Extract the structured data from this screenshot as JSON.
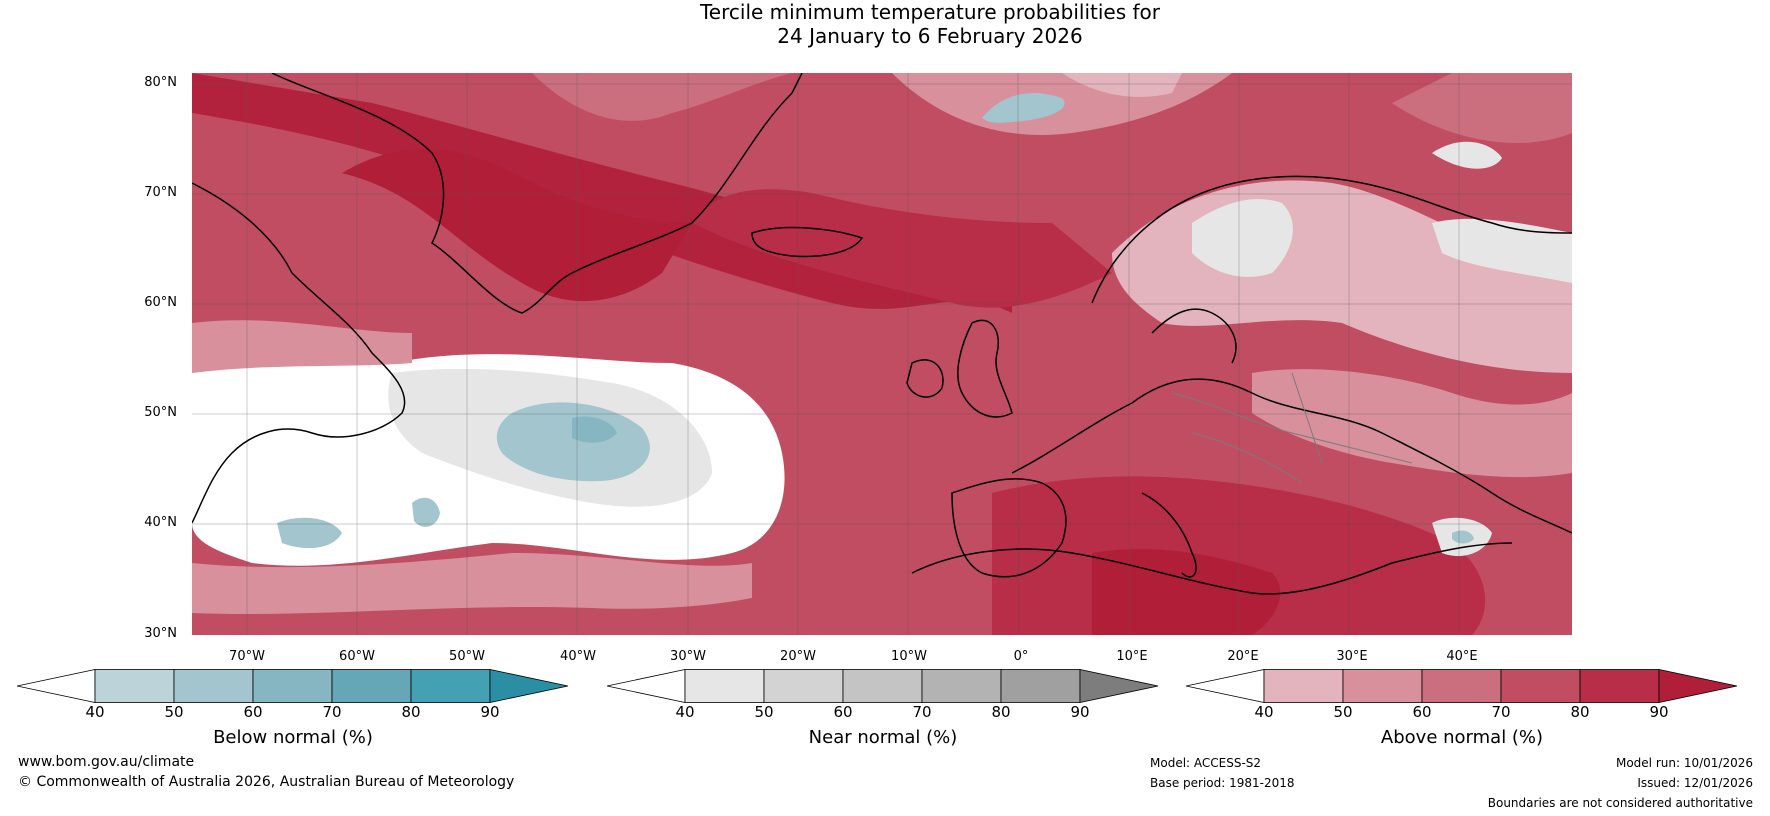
{
  "title": {
    "line1": "Tercile minimum temperature probabilities for",
    "line2": "24 January to 6 February 2026"
  },
  "map": {
    "lat_labels": [
      "80°N",
      "70°N",
      "60°N",
      "50°N",
      "40°N",
      "30°N"
    ],
    "lon_labels": [
      "70°W",
      "60°W",
      "50°W",
      "40°W",
      "30°W",
      "20°W",
      "10°W",
      "0°",
      "10°E",
      "20°E",
      "30°E",
      "40°E"
    ],
    "region_text": "Tercile probability map of the North Atlantic and Europe, predominantly above-normal (red) shading"
  },
  "colorbars": [
    {
      "title": "Below normal (%)",
      "ticks": [
        "40",
        "50",
        "60",
        "70",
        "80",
        "90"
      ],
      "colors": [
        "#ffffff",
        "#bcd3da",
        "#a3c5cd",
        "#86b6c2",
        "#66a7b7",
        "#44a0b3",
        "#2a8ea5"
      ]
    },
    {
      "title": "Near normal (%)",
      "ticks": [
        "40",
        "50",
        "60",
        "70",
        "80",
        "90"
      ],
      "colors": [
        "#ffffff",
        "#e6e6e6",
        "#d3d3d3",
        "#c4c4c4",
        "#b3b3b3",
        "#a0a0a0",
        "#7d7d7d"
      ]
    },
    {
      "title": "Above normal (%)",
      "ticks": [
        "40",
        "50",
        "60",
        "70",
        "80",
        "90"
      ],
      "colors": [
        "#ffffff",
        "#e3b4bd",
        "#d8909c",
        "#cb6f7e",
        "#c14d62",
        "#b82d47",
        "#b01e38"
      ]
    }
  ],
  "footer": {
    "website": "www.bom.gov.au/climate",
    "copyright": "© Commonwealth of Australia 2026, Australian Bureau of Meteorology",
    "model": "Model: ACCESS-S2",
    "base_period": "Base period: 1981-2018",
    "model_run": "Model run: 10/01/2026",
    "issued": "Issued: 12/01/2026",
    "disclaimer": "Boundaries are not considered authoritative"
  }
}
